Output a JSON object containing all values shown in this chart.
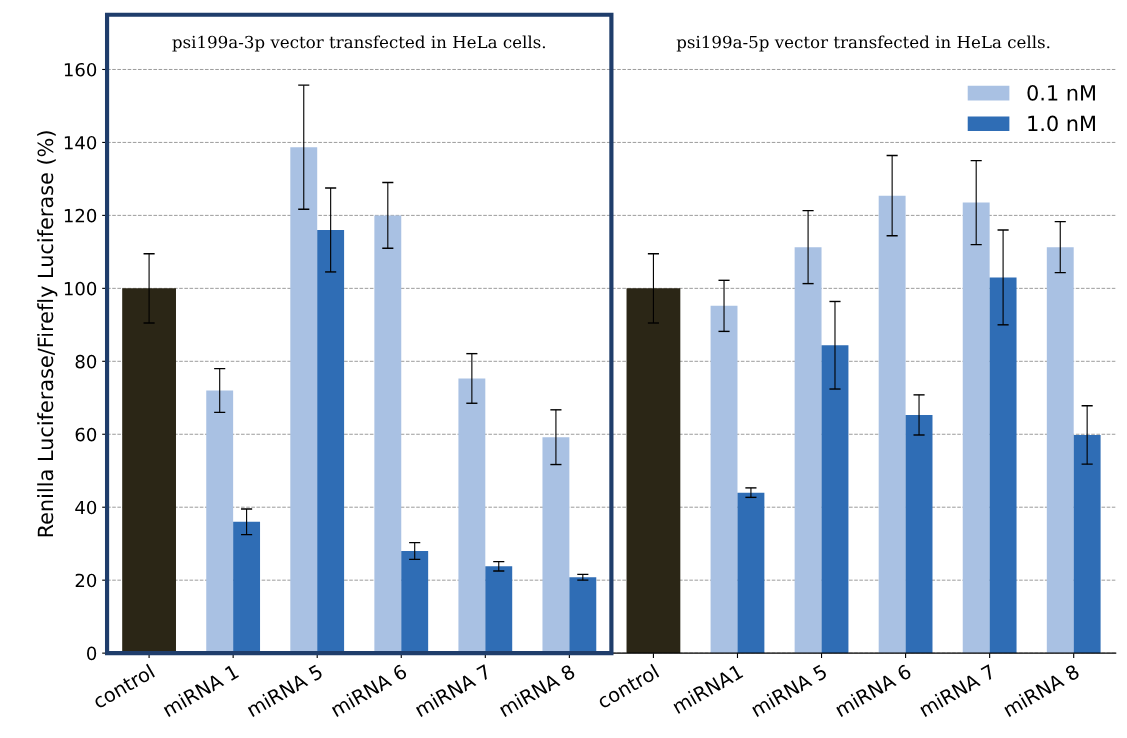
{
  "chart_data": {
    "type": "bar",
    "ylabel": "Renilla Luciferase/Firefly Luciferase (%)",
    "annotations": [
      "psi199a-3p vector transfected in HeLa cells.",
      "psi199a-5p vector transfected in HeLa cells."
    ],
    "categories": [
      "control",
      "miRNA 1",
      "miRNA 5",
      "miRNA 6",
      "miRNA 7",
      "miRNA 8",
      "control",
      "miRNA1",
      "miRNA 5",
      "miRNA 6",
      "miRNA 7",
      "miRNA 8"
    ],
    "series": [
      {
        "color": "#2b2616",
        "values": [
          100,
          null,
          null,
          null,
          null,
          null,
          100,
          null,
          null,
          null,
          null,
          null
        ],
        "errors": [
          9.5,
          null,
          null,
          null,
          null,
          null,
          9.5,
          null,
          null,
          null,
          null,
          null
        ]
      },
      {
        "name": "0.1 nM",
        "color": "#a9c1e3",
        "values": [
          null,
          72,
          138.7,
          120,
          75.3,
          59.2,
          null,
          95.2,
          111.3,
          125.4,
          123.5,
          111.3
        ],
        "errors": [
          null,
          6,
          17,
          9,
          6.8,
          7.5,
          null,
          7,
          10,
          11,
          11.5,
          7
        ]
      },
      {
        "name": "1.0 nM",
        "color": "#2f6db5",
        "values": [
          null,
          36,
          116,
          28,
          23.8,
          20.8,
          null,
          44,
          84.4,
          65.3,
          103,
          59.8
        ],
        "errors": [
          null,
          3.5,
          11.5,
          2.3,
          1.3,
          0.8,
          null,
          1.3,
          12,
          5.5,
          13,
          8
        ]
      }
    ],
    "ylim": [
      0,
      175
    ],
    "yticks": [
      0,
      20,
      40,
      60,
      80,
      100,
      120,
      140,
      160
    ],
    "grid": "y",
    "legend": "top right"
  }
}
